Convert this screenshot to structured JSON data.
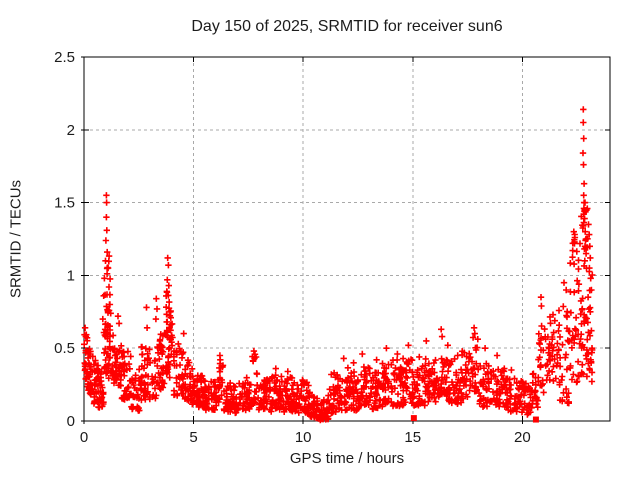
{
  "chart_data": {
    "type": "scatter",
    "title": "Day 150 of 2025, SRMTID for receiver sun6",
    "xlabel": "GPS time / hours",
    "ylabel": "SRMTID / TECUs",
    "xlim": [
      0,
      24
    ],
    "ylim": [
      0,
      2.5
    ],
    "xticks": [
      0,
      5,
      10,
      15,
      20
    ],
    "yticks": [
      0,
      0.5,
      1,
      1.5,
      2,
      2.5
    ],
    "grid": true,
    "legend": "none",
    "marker": "plus",
    "colors": {
      "marker": "#ff0000",
      "grid": "#a9a9a9",
      "axis": "#000000",
      "text": "#1c1c1c"
    },
    "seed": 20250530,
    "band_segments": [
      [
        0.0,
        0.15,
        18,
        0.28,
        0.62
      ],
      [
        0.15,
        0.4,
        30,
        0.18,
        0.5
      ],
      [
        0.4,
        0.65,
        28,
        0.12,
        0.42
      ],
      [
        0.65,
        0.9,
        26,
        0.08,
        0.33
      ],
      [
        0.9,
        1.35,
        40,
        0.3,
        0.68
      ],
      [
        0.95,
        1.2,
        26,
        0.55,
        1.18
      ],
      [
        1.35,
        1.7,
        32,
        0.22,
        0.52
      ],
      [
        1.7,
        2.15,
        36,
        0.15,
        0.48
      ],
      [
        2.15,
        2.6,
        34,
        0.07,
        0.38
      ],
      [
        2.6,
        3.3,
        48,
        0.15,
        0.52
      ],
      [
        3.3,
        3.7,
        36,
        0.22,
        0.62
      ],
      [
        3.7,
        4.1,
        34,
        0.3,
        0.78
      ],
      [
        3.75,
        3.98,
        15,
        0.6,
        1.02
      ],
      [
        4.1,
        4.55,
        36,
        0.18,
        0.55
      ],
      [
        4.55,
        5.0,
        38,
        0.12,
        0.42
      ],
      [
        5.0,
        5.5,
        42,
        0.1,
        0.32
      ],
      [
        5.5,
        6.0,
        42,
        0.08,
        0.28
      ],
      [
        6.0,
        6.1,
        8,
        0.08,
        0.25
      ],
      [
        6.1,
        6.35,
        18,
        0.12,
        0.4
      ],
      [
        6.35,
        6.65,
        20,
        0.06,
        0.25
      ],
      [
        6.65,
        7.25,
        46,
        0.06,
        0.27
      ],
      [
        7.25,
        7.65,
        30,
        0.08,
        0.3
      ],
      [
        7.65,
        7.9,
        16,
        0.12,
        0.46
      ],
      [
        7.9,
        8.55,
        50,
        0.07,
        0.29
      ],
      [
        8.55,
        9.1,
        44,
        0.08,
        0.32
      ],
      [
        9.1,
        9.65,
        46,
        0.07,
        0.3
      ],
      [
        9.65,
        10.25,
        46,
        0.05,
        0.28
      ],
      [
        10.25,
        10.7,
        36,
        0.02,
        0.2
      ],
      [
        10.7,
        11.15,
        36,
        0.01,
        0.14
      ],
      [
        11.15,
        11.55,
        28,
        0.05,
        0.33
      ],
      [
        11.55,
        12.05,
        38,
        0.08,
        0.36
      ],
      [
        12.05,
        12.55,
        38,
        0.08,
        0.34
      ],
      [
        12.55,
        13.05,
        38,
        0.1,
        0.38
      ],
      [
        13.05,
        13.55,
        38,
        0.08,
        0.35
      ],
      [
        13.55,
        14.05,
        38,
        0.1,
        0.4
      ],
      [
        14.05,
        14.55,
        38,
        0.1,
        0.42
      ],
      [
        14.55,
        15.05,
        38,
        0.12,
        0.44
      ],
      [
        15.05,
        15.55,
        38,
        0.1,
        0.4
      ],
      [
        15.55,
        16.05,
        38,
        0.12,
        0.44
      ],
      [
        16.05,
        16.65,
        42,
        0.15,
        0.5
      ],
      [
        16.65,
        17.25,
        42,
        0.12,
        0.42
      ],
      [
        17.25,
        17.65,
        28,
        0.15,
        0.48
      ],
      [
        17.65,
        18.05,
        24,
        0.18,
        0.58
      ],
      [
        18.05,
        18.65,
        42,
        0.1,
        0.4
      ],
      [
        18.65,
        19.25,
        42,
        0.1,
        0.37
      ],
      [
        19.25,
        19.85,
        42,
        0.07,
        0.3
      ],
      [
        19.85,
        20.45,
        38,
        0.05,
        0.28
      ],
      [
        20.45,
        20.72,
        18,
        0.1,
        0.35
      ],
      [
        20.72,
        21.05,
        22,
        0.15,
        0.68
      ],
      [
        21.05,
        21.65,
        34,
        0.28,
        0.72
      ],
      [
        21.65,
        22.15,
        34,
        0.12,
        0.9
      ],
      [
        22.15,
        22.65,
        40,
        0.25,
        1.28
      ],
      [
        22.65,
        23.0,
        45,
        0.3,
        1.52
      ],
      [
        23.0,
        23.2,
        16,
        0.25,
        1.05
      ]
    ],
    "outlier_points": [
      [
        0.05,
        0.64
      ],
      [
        0.08,
        0.58
      ],
      [
        1.02,
        1.55
      ],
      [
        1.03,
        1.5
      ],
      [
        1.02,
        1.4
      ],
      [
        1.04,
        1.31
      ],
      [
        1.0,
        1.24
      ],
      [
        1.06,
        1.16
      ],
      [
        0.98,
        1.1
      ],
      [
        1.1,
        1.05
      ],
      [
        0.93,
        0.98
      ],
      [
        1.14,
        0.92
      ],
      [
        0.9,
        0.86
      ],
      [
        1.18,
        0.8
      ],
      [
        1.22,
        0.74
      ],
      [
        0.86,
        0.7
      ],
      [
        1.55,
        0.72
      ],
      [
        1.6,
        0.67
      ],
      [
        2.85,
        0.78
      ],
      [
        2.88,
        0.64
      ],
      [
        3.3,
        0.84
      ],
      [
        3.33,
        0.77
      ],
      [
        3.28,
        0.7
      ],
      [
        3.82,
        1.12
      ],
      [
        3.85,
        1.07
      ],
      [
        3.8,
        0.97
      ],
      [
        3.87,
        0.93
      ],
      [
        3.78,
        0.89
      ],
      [
        4.55,
        0.6
      ],
      [
        6.2,
        0.45
      ],
      [
        6.22,
        0.42
      ],
      [
        7.75,
        0.48
      ],
      [
        7.78,
        0.43
      ],
      [
        8.75,
        0.36
      ],
      [
        9.3,
        0.34
      ],
      [
        11.85,
        0.43
      ],
      [
        12.3,
        0.4
      ],
      [
        12.7,
        0.46
      ],
      [
        13.35,
        0.42
      ],
      [
        13.8,
        0.5
      ],
      [
        14.3,
        0.46
      ],
      [
        14.8,
        0.52
      ],
      [
        15.3,
        0.44
      ],
      [
        15.62,
        0.55
      ],
      [
        16.3,
        0.63
      ],
      [
        16.34,
        0.58
      ],
      [
        16.6,
        0.52
      ],
      [
        17.05,
        0.45
      ],
      [
        17.8,
        0.64
      ],
      [
        17.83,
        0.6
      ],
      [
        18.3,
        0.5
      ],
      [
        18.85,
        0.45
      ],
      [
        19.5,
        0.35
      ],
      [
        20.85,
        0.85
      ],
      [
        20.87,
        0.79
      ],
      [
        21.4,
        0.73
      ],
      [
        21.9,
        0.95
      ],
      [
        22.0,
        0.9
      ],
      [
        22.35,
        1.3
      ],
      [
        22.4,
        1.26
      ],
      [
        22.38,
        1.22
      ],
      [
        22.3,
        1.17
      ],
      [
        22.78,
        2.14
      ],
      [
        22.78,
        2.05
      ],
      [
        22.8,
        1.94
      ],
      [
        22.77,
        1.84
      ],
      [
        22.79,
        1.76
      ],
      [
        22.82,
        1.63
      ],
      [
        22.8,
        1.55
      ],
      [
        22.82,
        1.5
      ],
      [
        22.81,
        1.46
      ],
      [
        22.83,
        1.44
      ],
      [
        22.8,
        1.42
      ],
      [
        22.84,
        1.39
      ],
      [
        22.87,
        1.3
      ],
      [
        22.9,
        1.25
      ],
      [
        22.86,
        1.2
      ],
      [
        22.91,
        1.15
      ],
      [
        22.85,
        1.1
      ],
      [
        23.02,
        1.35
      ],
      [
        23.05,
        1.28
      ],
      [
        23.08,
        1.2
      ],
      [
        23.1,
        1.12
      ],
      [
        23.06,
        1.05
      ],
      [
        23.12,
        0.98
      ],
      [
        23.15,
        0.9
      ],
      [
        23.0,
        0.85
      ],
      [
        23.1,
        0.75
      ],
      [
        23.15,
        0.62
      ],
      [
        23.18,
        0.5
      ],
      [
        23.12,
        0.42
      ],
      [
        23.08,
        0.35
      ]
    ],
    "square_points": [
      [
        15.05,
        0.02
      ],
      [
        20.62,
        0.01
      ]
    ]
  }
}
